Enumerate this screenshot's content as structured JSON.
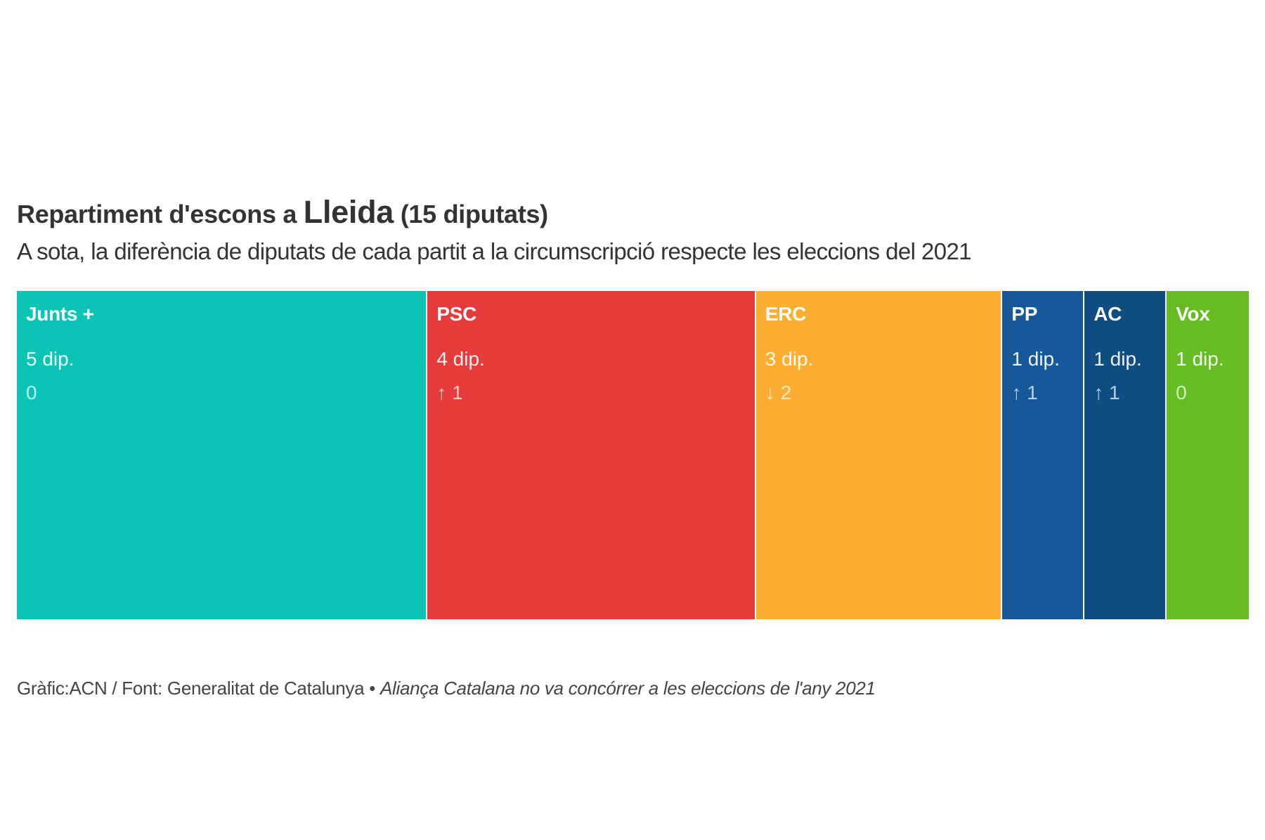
{
  "header": {
    "title_prefix": "Repartiment d'escons a ",
    "title_place": "Lleida",
    "title_suffix": " (15 diputats)",
    "subtitle": "A sota, la diferència de diputats de cada partit a la circumscripció respecte les eleccions del 2021"
  },
  "chart_data": {
    "type": "treemap-bar",
    "title": "Repartiment d'escons a Lleida (15 diputats)",
    "subtitle": "A sota, la diferència de diputats de cada partit a la circumscripció respecte les eleccions del 2021",
    "total_seats": 15,
    "categories": [
      "Junts +",
      "PSC",
      "ERC",
      "PP",
      "AC",
      "Vox"
    ],
    "values": [
      5,
      4,
      3,
      1,
      1,
      1
    ],
    "series": [
      {
        "name": "Junts +",
        "seats": 5,
        "seats_label": "5 dip.",
        "change": 0,
        "change_label": "0",
        "color": "#0bc4b6"
      },
      {
        "name": "PSC",
        "seats": 4,
        "seats_label": "4 dip.",
        "change": 1,
        "change_label": "↑ 1",
        "color": "#e53b3b"
      },
      {
        "name": "ERC",
        "seats": 3,
        "seats_label": "3 dip.",
        "change": -2,
        "change_label": "↓ 2",
        "color": "#fdae32"
      },
      {
        "name": "PP",
        "seats": 1,
        "seats_label": "1 dip.",
        "change": 1,
        "change_label": "↑ 1",
        "color": "#17589a"
      },
      {
        "name": "AC",
        "seats": 1,
        "seats_label": "1 dip.",
        "change": 1,
        "change_label": "↑ 1",
        "color": "#104e82"
      },
      {
        "name": "Vox",
        "seats": 1,
        "seats_label": "1 dip.",
        "change": 0,
        "change_label": "0",
        "color": "#65bd23"
      }
    ]
  },
  "footer": {
    "source": "Gràfic:ACN / Font: Generalitat de Catalunya • ",
    "note": "Aliança Catalana no va concórrer a les eleccions de l'any 2021"
  }
}
